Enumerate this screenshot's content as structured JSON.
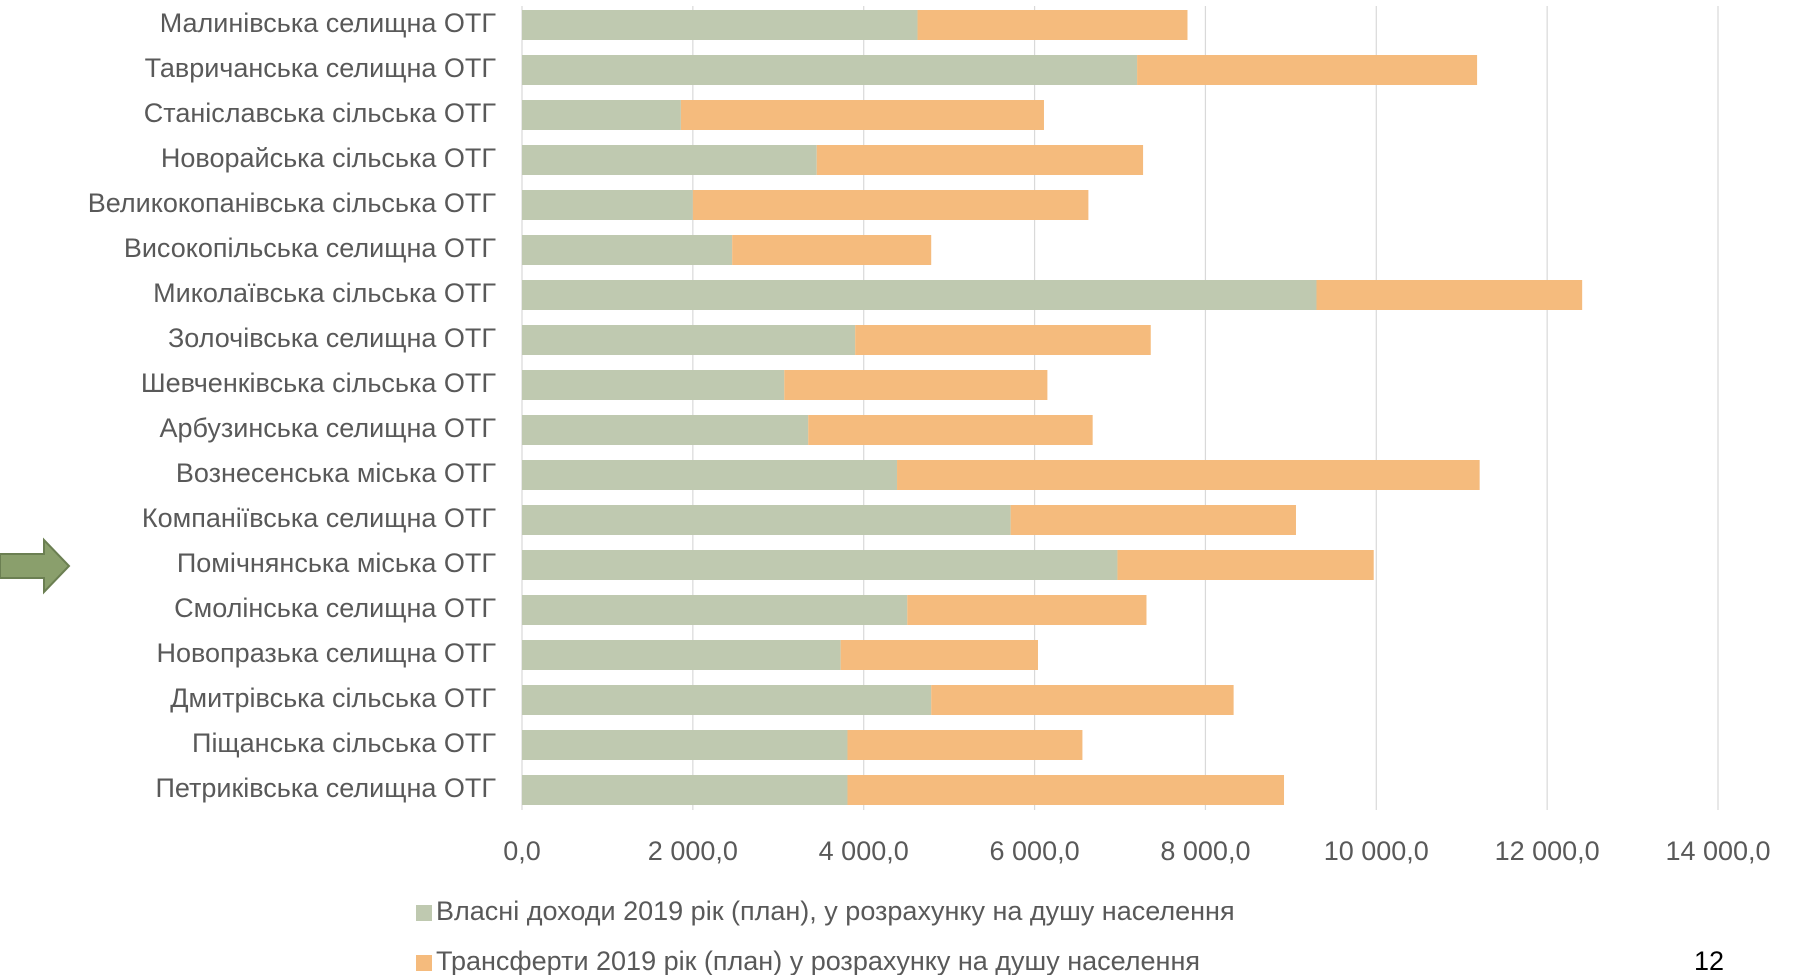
{
  "chart_data": {
    "type": "stacked-bar-horizontal",
    "categories": [
      "Малинівська селищна ОТГ",
      "Тавричанська селищна ОТГ",
      "Станіславська сільська ОТГ",
      "Новорайська сільська ОТГ",
      "Великокопанівська сільська ОТГ",
      "Високопільська селищна ОТГ",
      "Миколаївська сільська ОТГ",
      "Золочівська селищна ОТГ",
      "Шевченківська сільська ОТГ",
      "Арбузинська селищна ОТГ",
      "Вознесенська міська ОТГ",
      "Компаніївська селищна ОТГ",
      "Помічнянська міська ОТГ",
      "Смолінська селищна ОТГ",
      "Новопразька селищна ОТГ",
      "Дмитрівська сільська ОТГ",
      "Піщанська сільська ОТГ",
      "Петриківська селищна ОТГ"
    ],
    "series": [
      {
        "name": "Власні доходи 2019 рік (план), у розрахунку на душу населення",
        "color": "#bfc9b0",
        "values": [
          4630,
          7200,
          1860,
          3450,
          2000,
          2460,
          9300,
          3900,
          3070,
          3350,
          4390,
          5720,
          6970,
          4510,
          3730,
          4790,
          3810,
          3810
        ]
      },
      {
        "name": "Трансферти 2019 рік (план) у розрахунку на душу населення",
        "color": "#f5bb7d",
        "values": [
          3160,
          3980,
          4250,
          3820,
          4630,
          2330,
          3110,
          3460,
          3080,
          3330,
          6820,
          3340,
          3000,
          2800,
          2310,
          3540,
          2750,
          5110
        ]
      }
    ],
    "xlim": [
      0,
      14000
    ],
    "xticks": [
      {
        "value": 0,
        "label": "0,0"
      },
      {
        "value": 2000,
        "label": "2 000,0"
      },
      {
        "value": 4000,
        "label": "4 000,0"
      },
      {
        "value": 6000,
        "label": "6 000,0"
      },
      {
        "value": 8000,
        "label": "8 000,0"
      },
      {
        "value": 10000,
        "label": "10 000,0"
      },
      {
        "value": 12000,
        "label": "12 000,0"
      },
      {
        "value": 14000,
        "label": "14 000,0"
      }
    ],
    "grid": true,
    "legend": "bottom"
  },
  "page_number": "12"
}
